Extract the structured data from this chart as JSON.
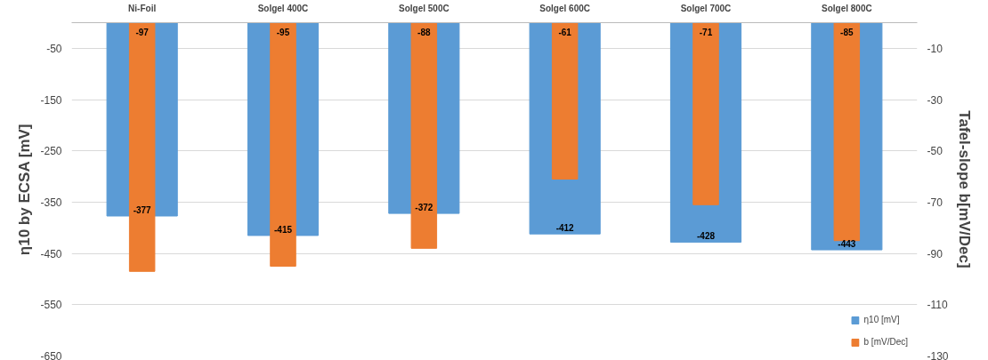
{
  "chart_data": {
    "type": "bar",
    "categories": [
      "Ni-Foil",
      "Solgel 400C",
      "Solgel 500C",
      "Solgel 600C",
      "Solgel 700C",
      "Solgel 800C"
    ],
    "series": [
      {
        "name": "η10 [mV]",
        "color": "#5b9bd5",
        "values": [
          -377,
          -415,
          -372,
          -412,
          -428,
          -443
        ]
      },
      {
        "name": "b [mV/Dec]",
        "color": "#ed7d31",
        "axis": "y2",
        "values": [
          -97,
          -95,
          -88,
          -61,
          -71,
          -85
        ]
      }
    ],
    "ylabel": "η10 by ECSA [mV]",
    "y2label": "Tafel-slope b[mV/Dec]",
    "ylim": [
      -650,
      0
    ],
    "yticks": [
      -50,
      -150,
      -250,
      -350,
      -450,
      -550,
      -650
    ],
    "y2lim": [
      -130,
      0
    ],
    "y2ticks": [
      -10,
      -30,
      -50,
      -70,
      -90,
      -110,
      -130
    ],
    "data_labels": true,
    "grid": "y",
    "legend": "bottom right"
  }
}
